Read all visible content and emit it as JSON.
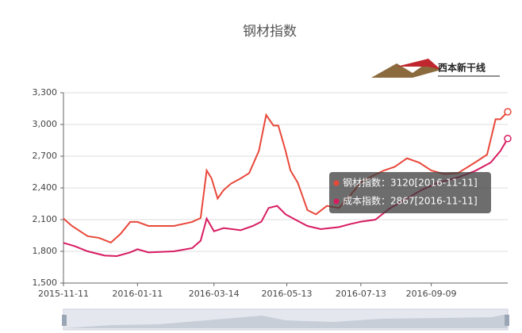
{
  "chart_data": {
    "type": "line",
    "title": "钢材指数",
    "logo_text": "西本新干线",
    "xlim": [
      "2015-11-11",
      "2016-11-11"
    ],
    "xticks": [
      "2015-11-11",
      "2016-01-11",
      "2016-03-14",
      "2016-05-13",
      "2016-07-13",
      "2016-09-09"
    ],
    "ylim": [
      1500,
      3300
    ],
    "yticks": [
      {
        "value": 1500,
        "label": "1,500"
      },
      {
        "value": 1800,
        "label": "1,800"
      },
      {
        "value": 2100,
        "label": "2,100"
      },
      {
        "value": 2400,
        "label": "2,400"
      },
      {
        "value": 2700,
        "label": "2,700"
      },
      {
        "value": 3000,
        "label": "3,000"
      },
      {
        "value": 3300,
        "label": "3,300"
      }
    ],
    "grid": true,
    "series": [
      {
        "name": "钢材指数",
        "color": "#e8483a",
        "x": [
          "2015-11-11",
          "2015-11-18",
          "2015-12-01",
          "2015-12-10",
          "2015-12-20",
          "2015-12-28",
          "2016-01-05",
          "2016-01-11",
          "2016-01-20",
          "2016-02-10",
          "2016-02-25",
          "2016-03-03",
          "2016-03-08",
          "2016-03-12",
          "2016-03-17",
          "2016-03-22",
          "2016-03-28",
          "2016-04-05",
          "2016-04-12",
          "2016-04-20",
          "2016-04-26",
          "2016-05-02",
          "2016-05-06",
          "2016-05-12",
          "2016-05-16",
          "2016-05-22",
          "2016-05-30",
          "2016-06-06",
          "2016-06-15",
          "2016-06-25",
          "2016-07-05",
          "2016-07-13",
          "2016-07-22",
          "2016-08-01",
          "2016-08-10",
          "2016-08-20",
          "2016-08-30",
          "2016-09-09",
          "2016-09-20",
          "2016-10-01",
          "2016-10-15",
          "2016-10-25",
          "2016-11-01",
          "2016-11-05",
          "2016-11-11"
        ],
        "values": [
          2110,
          2040,
          1943,
          1928,
          1883,
          1965,
          2078,
          2078,
          2040,
          2040,
          2078,
          2115,
          2565,
          2490,
          2300,
          2380,
          2440,
          2490,
          2540,
          2750,
          3090,
          2990,
          2990,
          2750,
          2565,
          2450,
          2190,
          2150,
          2230,
          2210,
          2340,
          2450,
          2510,
          2565,
          2600,
          2680,
          2640,
          2565,
          2530,
          2540,
          2640,
          2715,
          3050,
          3050,
          3120
        ]
      },
      {
        "name": "成本指数",
        "color": "#d81b60",
        "x": [
          "2015-11-11",
          "2015-11-20",
          "2015-12-01",
          "2015-12-15",
          "2015-12-25",
          "2016-01-05",
          "2016-01-11",
          "2016-01-20",
          "2016-02-10",
          "2016-02-25",
          "2016-03-03",
          "2016-03-08",
          "2016-03-14",
          "2016-03-22",
          "2016-04-05",
          "2016-04-15",
          "2016-04-22",
          "2016-04-28",
          "2016-05-05",
          "2016-05-12",
          "2016-05-20",
          "2016-05-30",
          "2016-06-10",
          "2016-06-25",
          "2016-07-05",
          "2016-07-13",
          "2016-07-25",
          "2016-08-05",
          "2016-08-20",
          "2016-09-01",
          "2016-09-15",
          "2016-10-01",
          "2016-10-15",
          "2016-10-28",
          "2016-11-05",
          "2016-11-11"
        ],
        "values": [
          1880,
          1850,
          1800,
          1760,
          1755,
          1790,
          1820,
          1790,
          1800,
          1830,
          1900,
          2110,
          1990,
          2020,
          2000,
          2040,
          2080,
          2210,
          2230,
          2150,
          2100,
          2040,
          2010,
          2030,
          2060,
          2080,
          2100,
          2200,
          2300,
          2380,
          2450,
          2500,
          2560,
          2640,
          2750,
          2867
        ]
      }
    ],
    "tooltip": [
      "钢材指数：3120[2016-11-11]",
      "成本指数：2867[2016-11-11]"
    ]
  }
}
